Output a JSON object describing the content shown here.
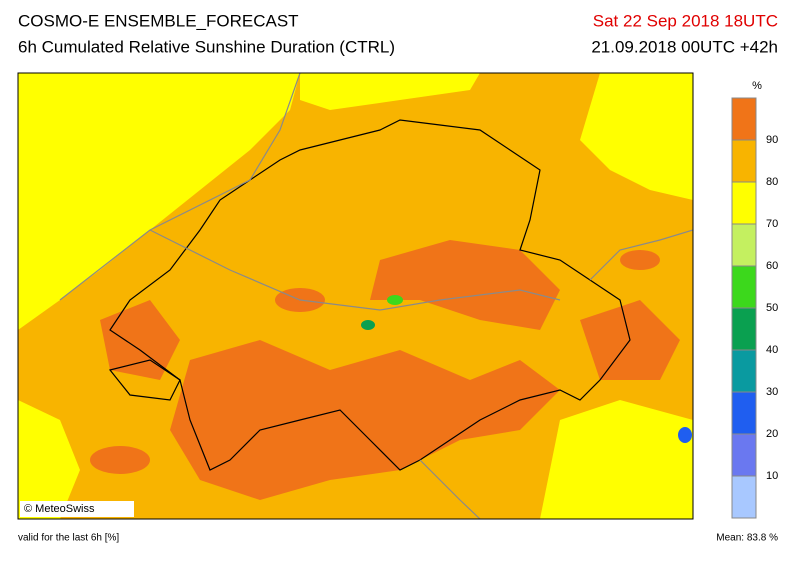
{
  "header": {
    "title": "COSMO-E ENSEMBLE_FORECAST",
    "subtitle": "6h Cumulated Relative Sunshine Duration (CTRL)",
    "valid_time": "Sat 22 Sep 2018 18UTC",
    "run": "21.09.2018 00UTC +42h"
  },
  "colorbar": {
    "unit": "%",
    "lim": [
      0,
      100
    ],
    "ticks": [
      10,
      20,
      30,
      40,
      50,
      60,
      70,
      80,
      90
    ],
    "colors": [
      "#a8c8ff",
      "#6a78f0",
      "#1f5ef0",
      "#0a9aa0",
      "#0aa050",
      "#3cd81c",
      "#c4f060",
      "#ffff00",
      "#f8b400",
      "#f07418"
    ]
  },
  "credit": "© MeteoSwiss",
  "footer": {
    "note": "valid for the last 6h [%]",
    "mean": "Mean:  83.8 %"
  }
}
